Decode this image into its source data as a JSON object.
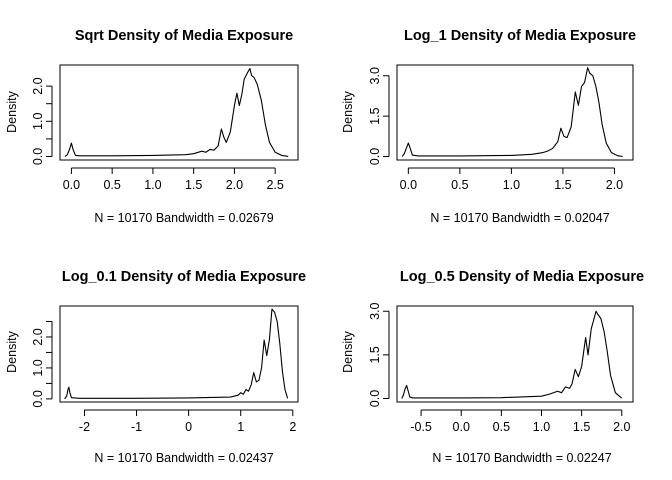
{
  "chart_data": [
    {
      "type": "line",
      "title": "Sqrt Density of Media Exposure",
      "xlabel": "N = 10170   Bandwidth = 0.02679",
      "ylabel": "Density",
      "xlim": [
        -0.14,
        2.78
      ],
      "ylim": [
        -0.1,
        2.6
      ],
      "xticks": [
        0.0,
        0.5,
        1.0,
        1.5,
        2.0,
        2.5
      ],
      "xtick_labels": [
        "0.0",
        "0.5",
        "1.0",
        "1.5",
        "2.0",
        "2.5"
      ],
      "yticks": [
        0.0,
        0.5,
        1.0,
        1.5,
        2.0
      ],
      "ytick_labels": [
        "0.0",
        "1.0",
        "2.0"
      ],
      "grid": false,
      "x": [
        -0.08,
        -0.05,
        -0.02,
        0.0,
        0.02,
        0.05,
        0.1,
        0.5,
        1.0,
        1.4,
        1.5,
        1.6,
        1.65,
        1.7,
        1.75,
        1.8,
        1.84,
        1.87,
        1.9,
        1.95,
        2.0,
        2.03,
        2.06,
        2.09,
        2.12,
        2.16,
        2.19,
        2.21,
        2.24,
        2.28,
        2.33,
        2.38,
        2.43,
        2.5,
        2.58,
        2.66
      ],
      "y": [
        0.0,
        0.05,
        0.22,
        0.38,
        0.2,
        0.03,
        0.02,
        0.02,
        0.03,
        0.05,
        0.08,
        0.15,
        0.12,
        0.2,
        0.18,
        0.3,
        0.78,
        0.55,
        0.4,
        0.7,
        1.45,
        1.8,
        1.45,
        1.75,
        2.2,
        2.38,
        2.5,
        2.3,
        2.25,
        2.05,
        1.6,
        0.9,
        0.4,
        0.12,
        0.03,
        0.0
      ]
    },
    {
      "type": "line",
      "title": "Log_1 Density of Media Exposure",
      "xlabel": "N = 10170   Bandwidth = 0.02047",
      "ylabel": "Density",
      "xlim": [
        -0.11,
        2.18
      ],
      "ylim": [
        -0.13,
        3.4
      ],
      "xticks": [
        0.0,
        0.5,
        1.0,
        1.5,
        2.0
      ],
      "xtick_labels": [
        "0.0",
        "0.5",
        "1.0",
        "1.5",
        "2.0"
      ],
      "yticks": [
        0.0,
        1.5,
        3.0
      ],
      "ytick_labels": [
        "0.0",
        "1.5",
        "3.0"
      ],
      "grid": false,
      "x": [
        -0.06,
        -0.04,
        -0.02,
        0.0,
        0.02,
        0.04,
        0.1,
        0.5,
        1.0,
        1.2,
        1.3,
        1.35,
        1.4,
        1.45,
        1.48,
        1.51,
        1.54,
        1.58,
        1.62,
        1.65,
        1.68,
        1.71,
        1.74,
        1.76,
        1.79,
        1.82,
        1.85,
        1.88,
        1.92,
        1.97,
        2.03,
        2.08
      ],
      "y": [
        0.0,
        0.1,
        0.3,
        0.5,
        0.28,
        0.05,
        0.02,
        0.02,
        0.04,
        0.08,
        0.14,
        0.2,
        0.3,
        0.55,
        1.05,
        0.75,
        0.7,
        1.1,
        2.4,
        1.9,
        2.6,
        2.75,
        3.3,
        3.1,
        3.0,
        2.6,
        2.0,
        1.2,
        0.5,
        0.15,
        0.03,
        0.0
      ]
    },
    {
      "type": "line",
      "title": "Log_0.1 Density of Media Exposure",
      "xlabel": "N = 10170   Bandwidth = 0.02437",
      "ylabel": "Density",
      "xlim": [
        -2.47,
        2.1
      ],
      "ylim": [
        -0.1,
        3.0
      ],
      "xticks": [
        -2,
        -1,
        0,
        1,
        2
      ],
      "xtick_labels": [
        "-2",
        "-1",
        "0",
        "1",
        "2"
      ],
      "yticks": [
        0.0,
        0.5,
        1.0,
        1.5,
        2.0,
        2.5
      ],
      "ytick_labels": [
        "0.0",
        "1.0",
        "2.0"
      ],
      "grid": false,
      "x": [
        -2.38,
        -2.34,
        -2.32,
        -2.3,
        -2.28,
        -2.25,
        -2.1,
        -1.0,
        0.0,
        0.8,
        0.95,
        1.0,
        1.05,
        1.1,
        1.15,
        1.2,
        1.25,
        1.3,
        1.35,
        1.4,
        1.45,
        1.5,
        1.55,
        1.6,
        1.65,
        1.7,
        1.75,
        1.8,
        1.85,
        1.9
      ],
      "y": [
        0.0,
        0.1,
        0.28,
        0.38,
        0.2,
        0.04,
        0.02,
        0.02,
        0.03,
        0.06,
        0.12,
        0.2,
        0.15,
        0.3,
        0.25,
        0.45,
        0.85,
        0.55,
        0.6,
        1.0,
        1.9,
        1.4,
        1.9,
        2.9,
        2.8,
        2.5,
        1.8,
        0.9,
        0.3,
        0.02
      ]
    },
    {
      "type": "line",
      "title": "Log_0.5 Density of Media Exposure",
      "xlabel": "N = 10170   Bandwidth = 0.02247",
      "ylabel": "Density",
      "xlim": [
        -0.8,
        2.14
      ],
      "ylim": [
        -0.12,
        3.18
      ],
      "xticks": [
        -0.5,
        0.0,
        0.5,
        1.0,
        1.5,
        2.0
      ],
      "xtick_labels": [
        "-0.5",
        "0.0",
        "0.5",
        "1.0",
        "1.5",
        "2.0"
      ],
      "yticks": [
        0.0,
        1.5,
        3.0
      ],
      "ytick_labels": [
        "0.0",
        "1.5",
        "3.0"
      ],
      "grid": false,
      "x": [
        -0.74,
        -0.72,
        -0.7,
        -0.68,
        -0.66,
        -0.64,
        -0.6,
        0.0,
        0.5,
        1.0,
        1.1,
        1.2,
        1.25,
        1.3,
        1.35,
        1.38,
        1.42,
        1.46,
        1.5,
        1.55,
        1.58,
        1.62,
        1.65,
        1.68,
        1.7,
        1.74,
        1.78,
        1.82,
        1.86,
        1.92,
        2.0
      ],
      "y": [
        0.0,
        0.12,
        0.32,
        0.45,
        0.25,
        0.05,
        0.02,
        0.02,
        0.03,
        0.08,
        0.15,
        0.25,
        0.2,
        0.4,
        0.35,
        0.5,
        1.0,
        0.75,
        1.1,
        2.1,
        1.5,
        2.4,
        2.7,
        3.0,
        2.9,
        2.75,
        2.3,
        1.6,
        0.8,
        0.2,
        0.01
      ]
    }
  ]
}
